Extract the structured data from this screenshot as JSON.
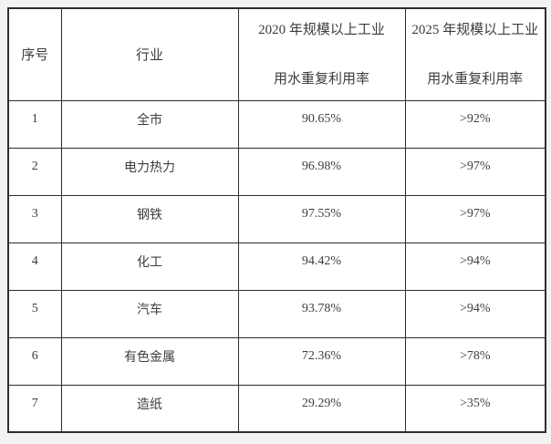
{
  "colors": {
    "page_background": "#f2f2f2",
    "table_background": "#ffffff",
    "border": "#2d2d2d",
    "text": "#3d3d3d"
  },
  "table": {
    "columns": {
      "no_label": "序号",
      "industry_label": "行业",
      "rate2020_label_line1": "2020 年规模以上工业",
      "rate2020_label_line2": "用水重复利用率",
      "rate2025_label_line1": "2025 年规模以上工业",
      "rate2025_label_line2": "用水重复利用率"
    },
    "rows": [
      {
        "no": "1",
        "industry": "全市",
        "rate_2020": "90.65%",
        "rate_2025": ">92%"
      },
      {
        "no": "2",
        "industry": "电力热力",
        "rate_2020": "96.98%",
        "rate_2025": ">97%"
      },
      {
        "no": "3",
        "industry": "钢铁",
        "rate_2020": "97.55%",
        "rate_2025": ">97%"
      },
      {
        "no": "4",
        "industry": "化工",
        "rate_2020": "94.42%",
        "rate_2025": ">94%"
      },
      {
        "no": "5",
        "industry": "汽车",
        "rate_2020": "93.78%",
        "rate_2025": ">94%"
      },
      {
        "no": "6",
        "industry": "有色金属",
        "rate_2020": "72.36%",
        "rate_2025": ">78%"
      },
      {
        "no": "7",
        "industry": "造纸",
        "rate_2020": "29.29%",
        "rate_2025": ">35%"
      }
    ]
  }
}
